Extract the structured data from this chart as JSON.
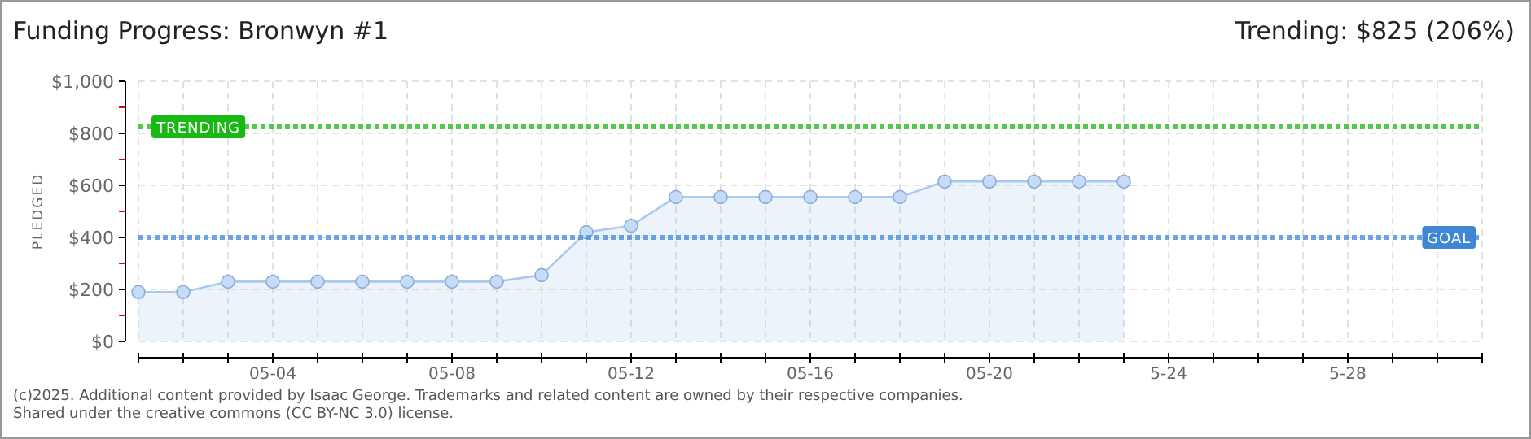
{
  "chart_data": {
    "type": "area",
    "title": "Funding Progress: Bronwyn #1",
    "subtitle": "Trending: $825 (206%)",
    "ylabel": "PLEDGED",
    "x": [
      "--05-01",
      "--05-02",
      "--05-03",
      "--05-04",
      "--05-05",
      "--05-06",
      "--05-07",
      "--05-08",
      "--05-09",
      "--05-10",
      "--05-11",
      "--05-12",
      "--05-13",
      "--05-14",
      "--05-15",
      "--05-16",
      "--05-17",
      "--05-18",
      "--05-19",
      "--05-20",
      "--05-21",
      "--05-22",
      "--05-23"
    ],
    "series": [
      {
        "color": "#a9c9ef",
        "values": [
          190,
          190,
          230,
          230,
          230,
          230,
          230,
          230,
          230,
          255,
          420,
          445,
          555,
          555,
          555,
          555,
          555,
          555,
          615,
          615,
          615,
          615,
          615
        ]
      }
    ],
    "marker": "circle",
    "grid": true,
    "xlim": [
      "--05-01",
      "--05-31"
    ],
    "xticks": [
      {
        "value": "--05-01",
        "label": null
      },
      {
        "value": "--05-02",
        "label": null
      },
      {
        "value": "--05-03",
        "label": null
      },
      {
        "value": "--05-04",
        "label": "05-04"
      },
      {
        "value": "--05-05",
        "label": null
      },
      {
        "value": "--05-06",
        "label": null
      },
      {
        "value": "--05-07",
        "label": null
      },
      {
        "value": "--05-08",
        "label": "05-08"
      },
      {
        "value": "--05-09",
        "label": null
      },
      {
        "value": "--05-10",
        "label": null
      },
      {
        "value": "--05-11",
        "label": null
      },
      {
        "value": "--05-12",
        "label": "05-12"
      },
      {
        "value": "--05-13",
        "label": null
      },
      {
        "value": "--05-14",
        "label": null
      },
      {
        "value": "--05-15",
        "label": null
      },
      {
        "value": "--05-16",
        "label": "05-16"
      },
      {
        "value": "--05-17",
        "label": null
      },
      {
        "value": "--05-18",
        "label": null
      },
      {
        "value": "--05-19",
        "label": null
      },
      {
        "value": "--05-20",
        "label": "05-20"
      },
      {
        "value": "--05-21",
        "label": null
      },
      {
        "value": "--05-22",
        "label": null
      },
      {
        "value": "--05-23",
        "label": null
      },
      {
        "value": "--05-24",
        "label": "5-24"
      },
      {
        "value": "--05-25",
        "label": null
      },
      {
        "value": "--05-26",
        "label": null
      },
      {
        "value": "--05-27",
        "label": null
      },
      {
        "value": "--05-28",
        "label": "5-28"
      },
      {
        "value": "--05-29",
        "label": null
      },
      {
        "value": "--05-30",
        "label": null
      },
      {
        "value": "--05-31",
        "label": null
      }
    ],
    "ylim": [
      0,
      1000
    ],
    "yticks": [
      {
        "value": 0,
        "label": "$0"
      },
      {
        "value": 100,
        "label": null
      },
      {
        "value": 200,
        "label": "$200"
      },
      {
        "value": 300,
        "label": null
      },
      {
        "value": 400,
        "label": "$400"
      },
      {
        "value": 500,
        "label": null
      },
      {
        "value": 600,
        "label": "$600"
      },
      {
        "value": 700,
        "label": null
      },
      {
        "value": 800,
        "label": "$800"
      },
      {
        "value": 900,
        "label": null
      },
      {
        "value": 1000,
        "label": "$1,000"
      }
    ],
    "ref_lines": [
      {
        "axis": "y",
        "value": 825,
        "label": "TRENDING",
        "color": "#19b814",
        "line_style": "dotted"
      },
      {
        "axis": "y",
        "value": 400,
        "label": "GOAL",
        "color": "#3f87d6",
        "line_style": "dotted"
      }
    ],
    "annotations": [
      "(c)2025. Additional content provided by Isaac George. Trademarks and related content are owned by their respective companies.",
      "Shared under the creative commons (CC BY-NC 3.0) license."
    ]
  }
}
